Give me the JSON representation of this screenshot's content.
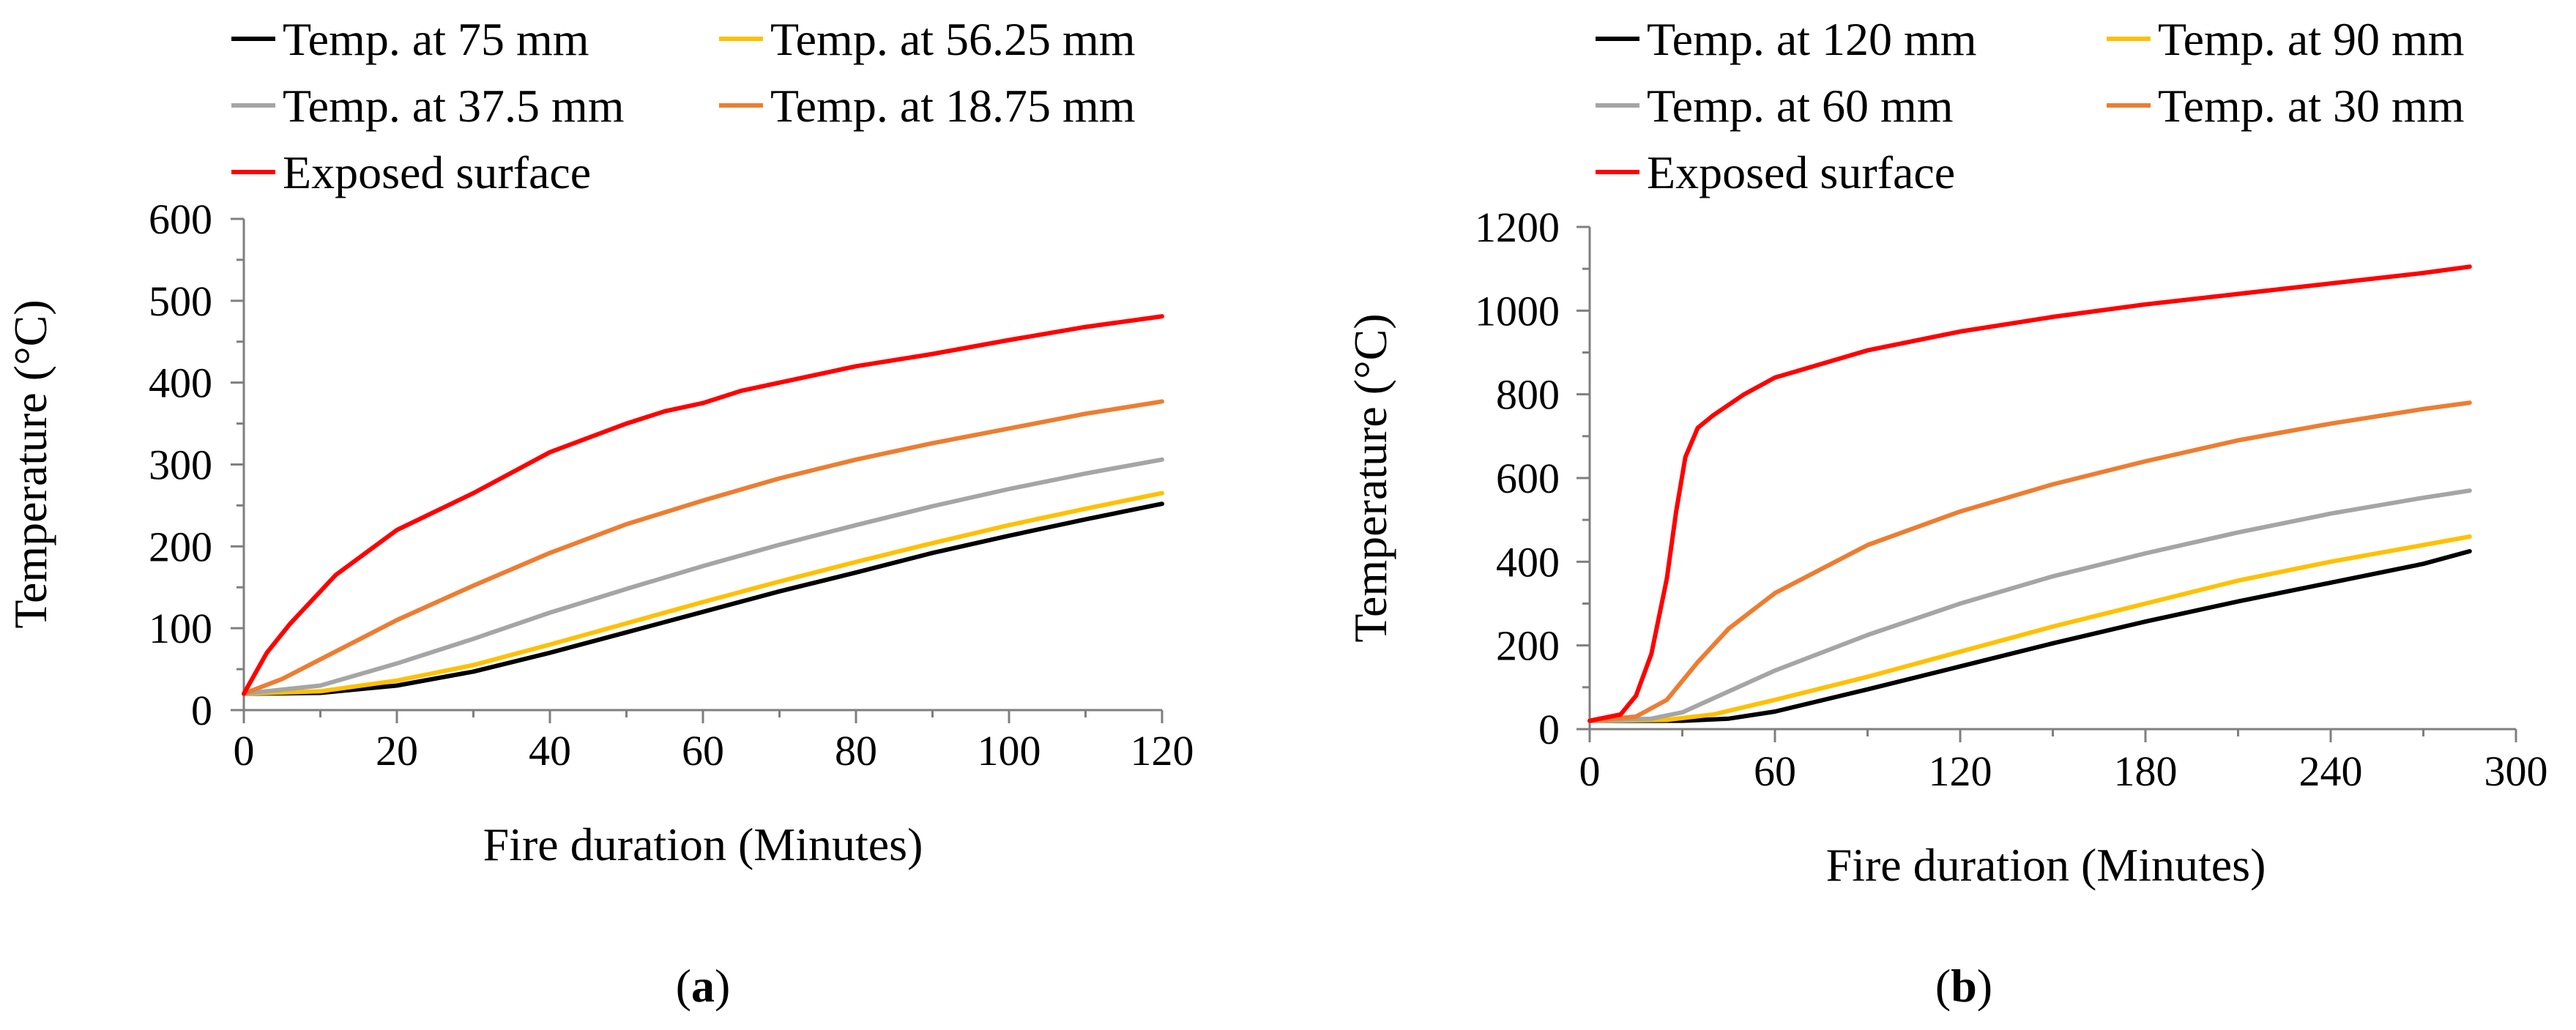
{
  "chart_data": [
    {
      "type": "line",
      "caption": "a",
      "xlabel": "Fire duration (Minutes)",
      "ylabel": "Temperature (°C)",
      "xlim": [
        0,
        120
      ],
      "ylim": [
        0,
        600
      ],
      "xticks": [
        0,
        20,
        40,
        60,
        80,
        100,
        120
      ],
      "yticks": [
        0,
        100,
        200,
        300,
        400,
        500,
        600
      ],
      "series": [
        {
          "name": "Temp. at 75 mm",
          "color": "#000000",
          "points": [
            [
              0,
              20
            ],
            [
              10,
              21
            ],
            [
              20,
              30
            ],
            [
              30,
              47
            ],
            [
              40,
              70
            ],
            [
              50,
              95
            ],
            [
              60,
              120
            ],
            [
              70,
              145
            ],
            [
              80,
              168
            ],
            [
              90,
              192
            ],
            [
              100,
              213
            ],
            [
              110,
              233
            ],
            [
              120,
              252
            ]
          ]
        },
        {
          "name": "Temp. at 56.25 mm",
          "color": "#FFC000",
          "points": [
            [
              0,
              20
            ],
            [
              10,
              23
            ],
            [
              20,
              36
            ],
            [
              30,
              55
            ],
            [
              40,
              80
            ],
            [
              50,
              106
            ],
            [
              60,
              132
            ],
            [
              70,
              157
            ],
            [
              80,
              181
            ],
            [
              90,
              204
            ],
            [
              100,
              226
            ],
            [
              110,
              246
            ],
            [
              120,
              265
            ]
          ]
        },
        {
          "name": "Temp. at 37.5 mm",
          "color": "#A5A5A5",
          "points": [
            [
              0,
              20
            ],
            [
              10,
              30
            ],
            [
              20,
              57
            ],
            [
              30,
              87
            ],
            [
              40,
              119
            ],
            [
              50,
              148
            ],
            [
              60,
              176
            ],
            [
              70,
              202
            ],
            [
              80,
              226
            ],
            [
              90,
              249
            ],
            [
              100,
              270
            ],
            [
              110,
              289
            ],
            [
              120,
              306
            ]
          ]
        },
        {
          "name": "Temp. at 18.75 mm",
          "color": "#ED7D31",
          "points": [
            [
              0,
              20
            ],
            [
              5,
              38
            ],
            [
              10,
              62
            ],
            [
              20,
              110
            ],
            [
              30,
              152
            ],
            [
              40,
              192
            ],
            [
              50,
              227
            ],
            [
              60,
              256
            ],
            [
              70,
              283
            ],
            [
              80,
              306
            ],
            [
              90,
              326
            ],
            [
              100,
              344
            ],
            [
              110,
              362
            ],
            [
              120,
              377
            ]
          ]
        },
        {
          "name": "Exposed surface",
          "color": "#FF0000",
          "points": [
            [
              0,
              20
            ],
            [
              3,
              70
            ],
            [
              6,
              105
            ],
            [
              12,
              165
            ],
            [
              20,
              220
            ],
            [
              30,
              265
            ],
            [
              40,
              315
            ],
            [
              50,
              350
            ],
            [
              55,
              365
            ],
            [
              60,
              375
            ],
            [
              65,
              390
            ],
            [
              70,
              400
            ],
            [
              80,
              420
            ],
            [
              90,
              435
            ],
            [
              100,
              452
            ],
            [
              110,
              468
            ],
            [
              120,
              481
            ]
          ]
        }
      ]
    },
    {
      "type": "line",
      "caption": "b",
      "xlabel": "Fire duration (Minutes)",
      "ylabel": "Temperature (°C)",
      "xlim": [
        0,
        300
      ],
      "ylim": [
        0,
        1200
      ],
      "xticks": [
        0,
        60,
        120,
        180,
        240,
        300
      ],
      "yticks": [
        0,
        200,
        400,
        600,
        800,
        1000,
        1200
      ],
      "series": [
        {
          "name": "Temp. at 120 mm",
          "color": "#000000",
          "points": [
            [
              0,
              20
            ],
            [
              30,
              20
            ],
            [
              45,
              25
            ],
            [
              60,
              42
            ],
            [
              90,
              95
            ],
            [
              120,
              150
            ],
            [
              150,
              205
            ],
            [
              180,
              257
            ],
            [
              210,
              305
            ],
            [
              240,
              350
            ],
            [
              270,
              395
            ],
            [
              285,
              425
            ]
          ]
        },
        {
          "name": "Temp. at 90 mm",
          "color": "#FFC000",
          "points": [
            [
              0,
              20
            ],
            [
              25,
              22
            ],
            [
              40,
              35
            ],
            [
              60,
              70
            ],
            [
              90,
              125
            ],
            [
              120,
              185
            ],
            [
              150,
              245
            ],
            [
              180,
              300
            ],
            [
              210,
              355
            ],
            [
              240,
              400
            ],
            [
              270,
              440
            ],
            [
              285,
              460
            ]
          ]
        },
        {
          "name": "Temp. at 60 mm",
          "color": "#A5A5A5",
          "points": [
            [
              0,
              20
            ],
            [
              20,
              25
            ],
            [
              30,
              40
            ],
            [
              45,
              90
            ],
            [
              60,
              140
            ],
            [
              90,
              225
            ],
            [
              120,
              300
            ],
            [
              150,
              365
            ],
            [
              180,
              420
            ],
            [
              210,
              470
            ],
            [
              240,
              515
            ],
            [
              270,
              553
            ],
            [
              285,
              570
            ]
          ]
        },
        {
          "name": "Temp. at 30 mm",
          "color": "#ED7D31",
          "points": [
            [
              0,
              20
            ],
            [
              15,
              30
            ],
            [
              25,
              70
            ],
            [
              35,
              160
            ],
            [
              45,
              240
            ],
            [
              60,
              325
            ],
            [
              90,
              440
            ],
            [
              120,
              520
            ],
            [
              150,
              585
            ],
            [
              180,
              640
            ],
            [
              210,
              690
            ],
            [
              240,
              730
            ],
            [
              270,
              765
            ],
            [
              285,
              780
            ]
          ]
        },
        {
          "name": "Exposed surface",
          "color": "#FF0000",
          "points": [
            [
              0,
              20
            ],
            [
              10,
              35
            ],
            [
              15,
              80
            ],
            [
              20,
              180
            ],
            [
              25,
              360
            ],
            [
              28,
              520
            ],
            [
              31,
              650
            ],
            [
              35,
              720
            ],
            [
              40,
              750
            ],
            [
              50,
              800
            ],
            [
              60,
              840
            ],
            [
              90,
              905
            ],
            [
              120,
              950
            ],
            [
              150,
              985
            ],
            [
              180,
              1015
            ],
            [
              210,
              1040
            ],
            [
              240,
              1065
            ],
            [
              270,
              1090
            ],
            [
              285,
              1105
            ]
          ]
        }
      ]
    }
  ]
}
